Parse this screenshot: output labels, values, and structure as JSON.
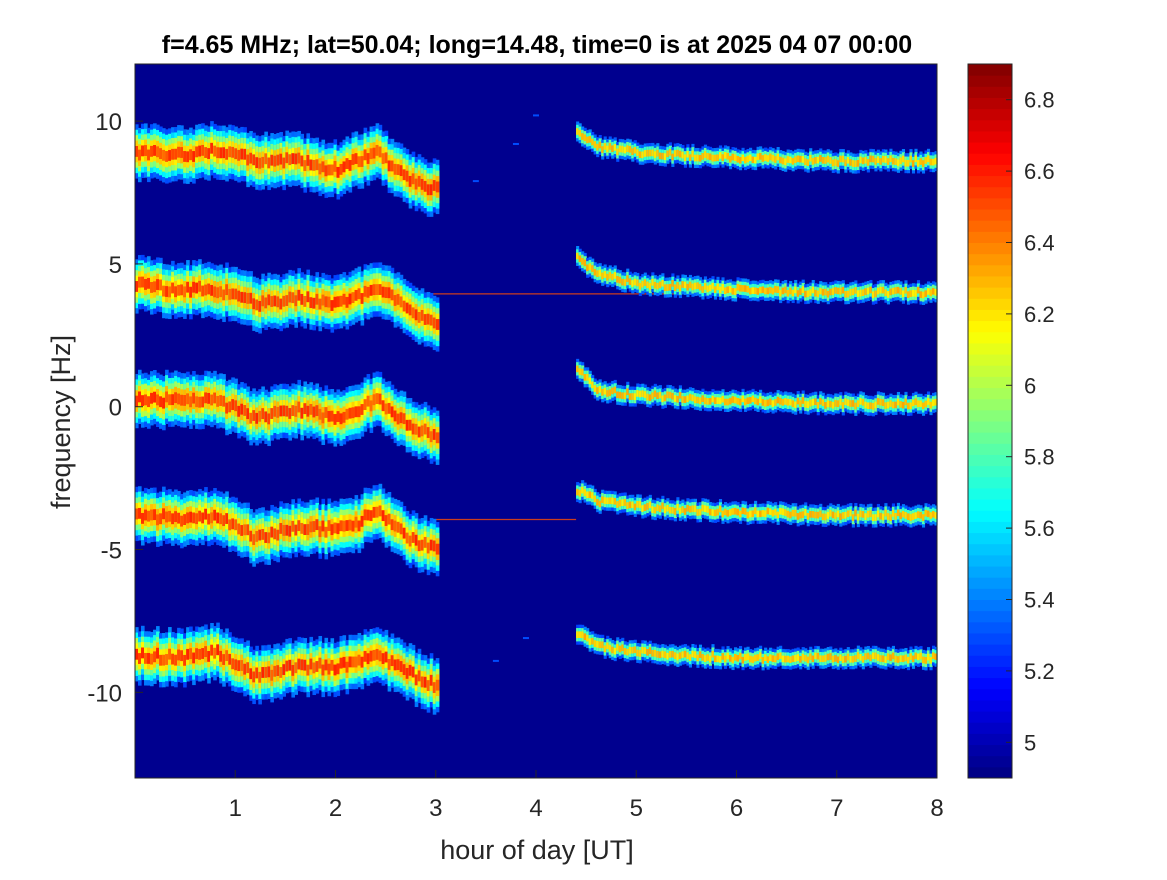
{
  "chart_data": {
    "type": "heatmap",
    "title": "f=4.65 MHz;  lat=50.04; long=14.48, time=0 is at 2025 04 07 00:00",
    "xlabel": "hour of day [UT]",
    "ylabel": "frequency [Hz]",
    "xlim": [
      0,
      8
    ],
    "ylim": [
      -13,
      12
    ],
    "xticks": [
      1,
      2,
      3,
      4,
      5,
      6,
      7,
      8
    ],
    "yticks": [
      10,
      5,
      0,
      -5,
      -10
    ],
    "colormap": "jet",
    "clim": [
      4.9,
      6.9
    ],
    "colorbar_ticks": [
      4.9,
      5,
      5.2,
      5.4,
      5.6,
      5.8,
      6,
      6.2,
      6.4,
      6.6,
      6.8
    ],
    "colorbar_tick_labels": [
      "",
      "5",
      "5.2",
      "5.4",
      "5.6",
      "5.8",
      "6",
      "6.2",
      "6.4",
      "6.6",
      "6.8"
    ],
    "background_value": 4.95,
    "traces": [
      {
        "name": "trace +9",
        "points": [
          [
            0,
            8.9
          ],
          [
            0.4,
            8.8
          ],
          [
            0.8,
            9.0
          ],
          [
            1.2,
            8.6
          ],
          [
            1.6,
            8.6
          ],
          [
            2.0,
            8.3
          ],
          [
            2.2,
            8.6
          ],
          [
            2.4,
            8.9
          ],
          [
            2.7,
            8.0
          ],
          [
            3.0,
            7.6
          ]
        ],
        "late_points": [
          [
            4.4,
            9.6
          ],
          [
            4.6,
            9.1
          ],
          [
            5.0,
            8.9
          ],
          [
            5.5,
            8.8
          ],
          [
            6.0,
            8.7
          ],
          [
            7.0,
            8.6
          ],
          [
            8.0,
            8.6
          ]
        ]
      },
      {
        "name": "trace +4",
        "points": [
          [
            0,
            4.3
          ],
          [
            0.4,
            4.1
          ],
          [
            0.8,
            4.1
          ],
          [
            1.2,
            3.6
          ],
          [
            1.6,
            3.8
          ],
          [
            2.0,
            3.6
          ],
          [
            2.2,
            3.8
          ],
          [
            2.4,
            4.2
          ],
          [
            2.7,
            3.4
          ],
          [
            3.0,
            3.0
          ]
        ],
        "late_points": [
          [
            4.4,
            5.2
          ],
          [
            4.6,
            4.7
          ],
          [
            5.0,
            4.3
          ],
          [
            5.5,
            4.2
          ],
          [
            6.0,
            4.1
          ],
          [
            7.0,
            4.0
          ],
          [
            8.0,
            4.0
          ]
        ]
      },
      {
        "name": "trace 0",
        "points": [
          [
            0,
            0.3
          ],
          [
            0.4,
            0.2
          ],
          [
            0.8,
            0.2
          ],
          [
            1.2,
            -0.4
          ],
          [
            1.6,
            -0.1
          ],
          [
            2.0,
            -0.4
          ],
          [
            2.2,
            -0.2
          ],
          [
            2.4,
            0.3
          ],
          [
            2.7,
            -0.6
          ],
          [
            3.0,
            -1.1
          ]
        ],
        "late_points": [
          [
            4.4,
            1.3
          ],
          [
            4.6,
            0.6
          ],
          [
            5.0,
            0.4
          ],
          [
            5.5,
            0.3
          ],
          [
            6.0,
            0.2
          ],
          [
            7.0,
            0.1
          ],
          [
            8.0,
            0.1
          ]
        ]
      },
      {
        "name": "trace -4",
        "points": [
          [
            0,
            -3.8
          ],
          [
            0.4,
            -3.9
          ],
          [
            0.8,
            -3.8
          ],
          [
            1.2,
            -4.6
          ],
          [
            1.6,
            -4.2
          ],
          [
            2.0,
            -4.3
          ],
          [
            2.2,
            -4.1
          ],
          [
            2.4,
            -3.6
          ],
          [
            2.7,
            -4.6
          ],
          [
            3.0,
            -5.0
          ]
        ],
        "late_points": [
          [
            4.4,
            -2.9
          ],
          [
            4.6,
            -3.3
          ],
          [
            5.0,
            -3.5
          ],
          [
            5.5,
            -3.6
          ],
          [
            6.0,
            -3.7
          ],
          [
            7.0,
            -3.8
          ],
          [
            8.0,
            -3.8
          ]
        ]
      },
      {
        "name": "trace -9",
        "points": [
          [
            0,
            -8.7
          ],
          [
            0.4,
            -8.8
          ],
          [
            0.8,
            -8.6
          ],
          [
            1.2,
            -9.4
          ],
          [
            1.6,
            -9.1
          ],
          [
            2.0,
            -9.1
          ],
          [
            2.2,
            -8.9
          ],
          [
            2.4,
            -8.7
          ],
          [
            2.7,
            -9.3
          ],
          [
            3.0,
            -9.8
          ]
        ],
        "late_points": [
          [
            4.4,
            -7.9
          ],
          [
            4.6,
            -8.4
          ],
          [
            5.0,
            -8.6
          ],
          [
            5.5,
            -8.7
          ],
          [
            6.0,
            -8.8
          ],
          [
            7.0,
            -8.8
          ],
          [
            8.0,
            -8.8
          ]
        ]
      }
    ],
    "horizontal_lines": [
      {
        "y": 3.95,
        "x_range": [
          2.8,
          8.0
        ]
      },
      {
        "y": -3.95,
        "x_range": [
          3.0,
          4.4
        ]
      }
    ],
    "faint_features": [
      [
        3.4,
        7.9
      ],
      [
        3.8,
        9.2
      ],
      [
        4.0,
        10.2
      ],
      [
        3.6,
        -8.9
      ],
      [
        3.9,
        -8.1
      ]
    ]
  }
}
